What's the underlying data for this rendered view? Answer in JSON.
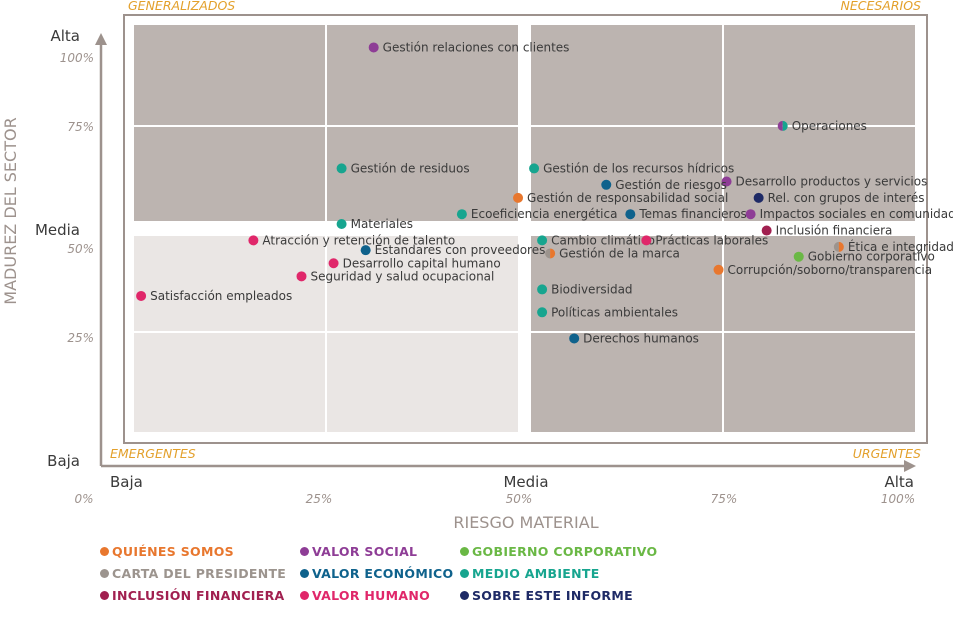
{
  "chart_data": {
    "type": "scatter",
    "title": "",
    "xlabel": "RIESGO MATERIAL",
    "ylabel": "MADUREZ DEL SECTOR",
    "xlim": [
      0,
      100
    ],
    "ylim": [
      -29,
      100
    ],
    "x_level_labels": [
      "Baja",
      "Media",
      "Alta"
    ],
    "x_percent_labels": [
      "0%",
      "25%",
      "50%",
      "75%",
      "100%"
    ],
    "y_level_labels": [
      "Baja",
      "Media",
      "Alta"
    ],
    "y_percent_labels": [
      "25%",
      "50%",
      "75%",
      "100%"
    ],
    "quadrants": {
      "top_left": "GENERALIZADOS",
      "top_right": "NECESARIOS",
      "bottom_left": "EMERGENTES",
      "bottom_right": "URGENTES"
    },
    "points": [
      {
        "label": "Gestión relaciones con clientes",
        "x": 34,
        "y": 99,
        "category": "valor_social"
      },
      {
        "label": "Operaciones",
        "x": 85,
        "y": 75,
        "category": "valor_social",
        "split_with": "medio_ambiente"
      },
      {
        "label": "Gestión de residuos",
        "x": 30,
        "y": 62,
        "category": "medio_ambiente"
      },
      {
        "label": "Gestión de los recursos hídricos",
        "x": 54,
        "y": 62,
        "category": "medio_ambiente"
      },
      {
        "label": "Desarrollo productos y servicios",
        "x": 78,
        "y": 58,
        "category": "valor_social"
      },
      {
        "label": "Gestión de riesgos",
        "x": 63,
        "y": 57,
        "category": "valor_economico"
      },
      {
        "label": "Gestión de responsabilidad social",
        "x": 52,
        "y": 53,
        "category": "quienes_somos"
      },
      {
        "label": "Rel. con grupos de interés",
        "x": 82,
        "y": 53,
        "category": "sobre_este_informe"
      },
      {
        "label": "Ecoeficiencia energética",
        "x": 45,
        "y": 48,
        "category": "medio_ambiente"
      },
      {
        "label": "Temas financieros",
        "x": 66,
        "y": 48,
        "category": "valor_economico"
      },
      {
        "label": "Impactos sociales en comunidades",
        "x": 81,
        "y": 48,
        "category": "valor_social"
      },
      {
        "label": "Materiales",
        "x": 30,
        "y": 45,
        "category": "medio_ambiente"
      },
      {
        "label": "Inclusión financiera",
        "x": 83,
        "y": 43,
        "category": "inclusion_financiera"
      },
      {
        "label": "Atracción y retención de talento",
        "x": 19,
        "y": 40,
        "category": "valor_humano"
      },
      {
        "label": "Cambio climático",
        "x": 55,
        "y": 40,
        "category": "medio_ambiente"
      },
      {
        "label": "Prácticas laborales",
        "x": 68,
        "y": 40,
        "category": "valor_humano"
      },
      {
        "label": "Ética e integridad",
        "x": 92,
        "y": 38,
        "category": "carta_del_presidente",
        "split_with": "quienes_somos"
      },
      {
        "label": "Estandares con proveedores",
        "x": 33,
        "y": 37,
        "category": "valor_economico"
      },
      {
        "label": "Gestión de la marca",
        "x": 56,
        "y": 36,
        "category": "carta_del_presidente",
        "split_with": "quienes_somos"
      },
      {
        "label": "Gobierno corporativo",
        "x": 87,
        "y": 35,
        "category": "gobierno_corporativo"
      },
      {
        "label": "Desarrollo capital humano",
        "x": 29,
        "y": 33,
        "category": "valor_humano"
      },
      {
        "label": "Corrupción/soborno/transparencia",
        "x": 77,
        "y": 31,
        "category": "quienes_somos"
      },
      {
        "label": "Seguridad y salud ocupacional",
        "x": 25,
        "y": 29,
        "category": "valor_humano"
      },
      {
        "label": "Biodiversidad",
        "x": 55,
        "y": 25,
        "category": "medio_ambiente"
      },
      {
        "label": "Satisfacción empleados",
        "x": 5,
        "y": 23,
        "category": "valor_humano"
      },
      {
        "label": "Políticas ambientales",
        "x": 55,
        "y": 18,
        "category": "medio_ambiente"
      },
      {
        "label": "Derechos humanos",
        "x": 59,
        "y": 10,
        "category": "valor_economico"
      }
    ],
    "grid": false,
    "legend_position": "bottom"
  },
  "legend": [
    {
      "key": "quienes_somos",
      "label": "QUIÉNES SOMOS",
      "color": "#e8772e"
    },
    {
      "key": "carta_del_presidente",
      "label": "CARTA DEL PRESIDENTE",
      "color": "#9c948e"
    },
    {
      "key": "inclusion_financiera",
      "label": "INCLUSIÓN FINANCIERA",
      "color": "#a12050"
    },
    {
      "key": "valor_social",
      "label": "VALOR SOCIAL",
      "color": "#8e3d96"
    },
    {
      "key": "valor_economico",
      "label": "VALOR ECONÓMICO",
      "color": "#0f628c"
    },
    {
      "key": "valor_humano",
      "label": "VALOR HUMANO",
      "color": "#e0276a"
    },
    {
      "key": "gobierno_corporativo",
      "label": "GOBIERNO CORPORATIVO",
      "color": "#6ab845"
    },
    {
      "key": "medio_ambiente",
      "label": "MEDIO AMBIENTE",
      "color": "#17a58f"
    },
    {
      "key": "sobre_este_informe",
      "label": "SOBRE ESTE INFORME",
      "color": "#1e2a66"
    }
  ],
  "colors": {
    "axis": "#9d928d",
    "frame": "#9d928d",
    "quadrant_dark": "#bcb4b0",
    "quadrant_light": "#eae6e4",
    "quadrant_label": "#e3a02b",
    "text": "#3a3a3a",
    "muted_text": "#9d928d"
  }
}
